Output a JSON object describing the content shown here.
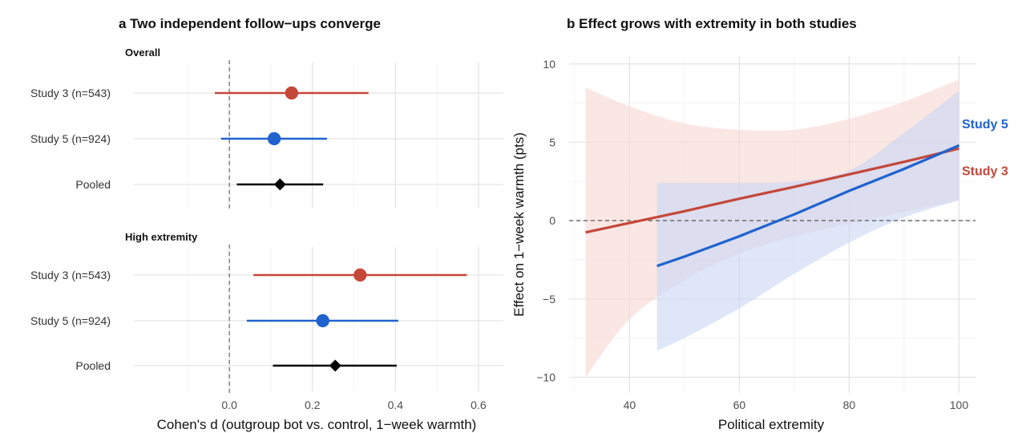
{
  "chart_data": [
    {
      "type": "forest",
      "title": "a  Two independent follow−ups converge",
      "xlabel": "Cohen's d (outgroup bot vs. control, 1−week warmth)",
      "xlim": [
        -0.23,
        0.66
      ],
      "xticks": [
        0.0,
        0.2,
        0.4,
        0.6
      ],
      "xtick_labels": [
        "0.0",
        "0.2",
        "0.4",
        "0.6"
      ],
      "reference_line": 0,
      "colors": {
        "Study 3 (n=543)": "#c5473a",
        "Study 5 (n=924)": "#1f63cf",
        "Pooled": "#000000"
      },
      "panels": [
        {
          "label": "Overall",
          "rows": [
            {
              "label": "Study 3 (n=543)",
              "estimate": 0.15,
              "lower": -0.035,
              "upper": 0.335,
              "marker": "circle"
            },
            {
              "label": "Study 5 (n=924)",
              "estimate": 0.108,
              "lower": -0.02,
              "upper": 0.235,
              "marker": "circle"
            },
            {
              "label": "Pooled",
              "estimate": 0.122,
              "lower": 0.018,
              "upper": 0.226,
              "marker": "diamond"
            }
          ]
        },
        {
          "label": "High extremity",
          "rows": [
            {
              "label": "Study 3 (n=543)",
              "estimate": 0.315,
              "lower": 0.058,
              "upper": 0.572,
              "marker": "circle"
            },
            {
              "label": "Study 5 (n=924)",
              "estimate": 0.225,
              "lower": 0.042,
              "upper": 0.407,
              "marker": "circle"
            },
            {
              "label": "Pooled",
              "estimate": 0.255,
              "lower": 0.105,
              "upper": 0.403,
              "marker": "diamond"
            }
          ]
        }
      ]
    },
    {
      "type": "line",
      "title": "b  Effect grows with extremity in both studies",
      "xlabel": "Political extremity",
      "ylabel": "Effect on 1−week warmth (pts)",
      "xlim": [
        29,
        103
      ],
      "ylim": [
        -11,
        10.5
      ],
      "xticks": [
        40,
        60,
        80,
        100
      ],
      "yticks": [
        -10,
        -5,
        0,
        5,
        10
      ],
      "ytick_labels": [
        "−10",
        "−5",
        "0",
        "5",
        "10"
      ],
      "reference_line": 0,
      "series": [
        {
          "name": "Study 3",
          "color": "#c5473a",
          "fill": "#f7d9d4",
          "x": [
            32,
            40,
            50,
            60,
            70,
            80,
            90,
            100
          ],
          "y": [
            -0.75,
            -0.15,
            0.6,
            1.4,
            2.15,
            2.95,
            3.75,
            4.6
          ],
          "lower": [
            -10.0,
            -6.3,
            -3.8,
            -2.1,
            -1.0,
            -0.2,
            0.55,
            1.3
          ],
          "upper": [
            8.5,
            7.3,
            6.2,
            5.8,
            5.8,
            6.5,
            7.6,
            9.0
          ]
        },
        {
          "name": "Study 5",
          "color": "#1f63cf",
          "fill": "#c9d7f4",
          "x": [
            45,
            50,
            60,
            70,
            80,
            90,
            100
          ],
          "y": [
            -2.9,
            -2.3,
            -1.0,
            0.4,
            1.9,
            3.3,
            4.8
          ],
          "lower": [
            -8.3,
            -7.5,
            -5.6,
            -3.4,
            -1.4,
            0.2,
            1.3
          ],
          "upper": [
            2.4,
            2.4,
            2.4,
            2.5,
            3.2,
            5.6,
            8.3
          ]
        }
      ]
    }
  ]
}
